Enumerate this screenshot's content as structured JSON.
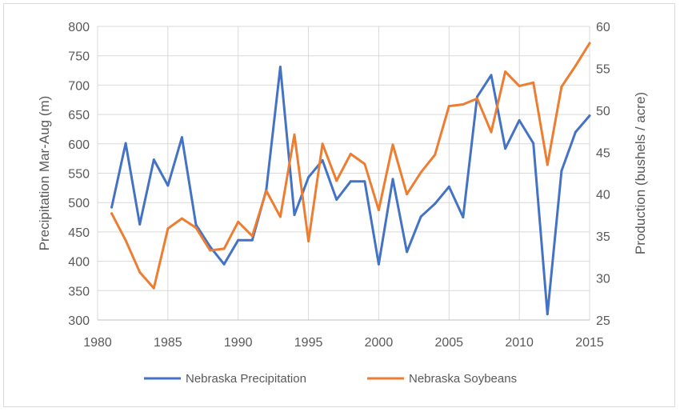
{
  "chart_data": {
    "type": "line",
    "x": [
      1981,
      1982,
      1983,
      1984,
      1985,
      1986,
      1987,
      1988,
      1989,
      1990,
      1991,
      1992,
      1993,
      1994,
      1995,
      1996,
      1997,
      1998,
      1999,
      2000,
      2001,
      2002,
      2003,
      2004,
      2005,
      2006,
      2007,
      2008,
      2009,
      2010,
      2011,
      2012,
      2013,
      2014,
      2015
    ],
    "series": [
      {
        "name": "Nebraska Precipitation",
        "axis": "left",
        "color": "#4472c4",
        "values": [
          492,
          601,
          463,
          573,
          529,
          611,
          462,
          425,
          395,
          436,
          436,
          522,
          731,
          479,
          543,
          572,
          505,
          536,
          536,
          395,
          540,
          416,
          476,
          498,
          527,
          475,
          680,
          717,
          592,
          640,
          601,
          310,
          554,
          620,
          648
        ]
      },
      {
        "name": "Nebraska Soybeans",
        "axis": "right",
        "color": "#ed7d31",
        "values": [
          37.7,
          34.5,
          30.7,
          28.8,
          35.9,
          37.1,
          36.0,
          33.3,
          33.5,
          36.7,
          35.0,
          40.4,
          37.3,
          47.1,
          34.4,
          46.0,
          41.6,
          44.8,
          43.6,
          38.1,
          45.9,
          40.0,
          42.6,
          44.7,
          50.5,
          50.7,
          51.4,
          47.4,
          54.6,
          52.9,
          53.3,
          43.5,
          52.8,
          55.3,
          58.0
        ]
      }
    ],
    "xlim": [
      1980,
      2015
    ],
    "x_ticks": [
      "1980",
      "1985",
      "1990",
      "1995",
      "2000",
      "2005",
      "2010",
      "2015"
    ],
    "ylim_left": [
      300,
      800
    ],
    "y_ticks_left": [
      "300",
      "350",
      "400",
      "450",
      "500",
      "550",
      "600",
      "650",
      "700",
      "750",
      "800"
    ],
    "ylim_right": [
      25,
      60
    ],
    "y_ticks_right": [
      "25",
      "30",
      "35",
      "40",
      "45",
      "50",
      "55",
      "60"
    ],
    "ylabel_left": "Precipitation  Mar-Aug (m)",
    "ylabel_right": "Production  (bushels / acre)",
    "grid": true,
    "legend_position": "bottom"
  }
}
